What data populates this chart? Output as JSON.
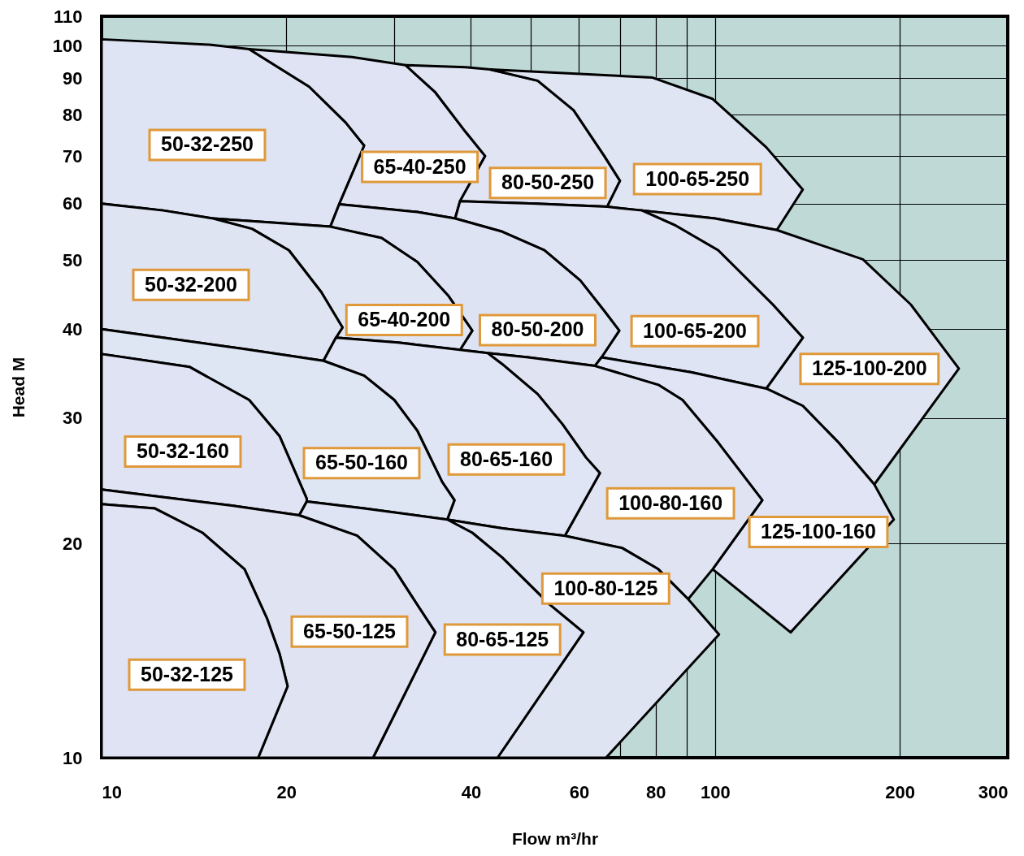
{
  "chart_data": {
    "type": "area",
    "xlabel": "Flow m³/hr",
    "ylabel": "Head M",
    "log": "xy",
    "grid": true,
    "xlim": [
      10,
      300
    ],
    "ylim": [
      10,
      110
    ],
    "xticks": [
      10,
      20,
      {
        "value": 30,
        "label": null
      },
      40,
      {
        "value": 50,
        "label": null
      },
      60,
      {
        "value": 70,
        "label": null
      },
      80,
      {
        "value": 90,
        "label": null
      },
      100,
      200,
      300
    ],
    "yticks": [
      10,
      20,
      30,
      40,
      50,
      60,
      70,
      80,
      90,
      100,
      110
    ],
    "series": [
      {
        "name": "50-32-250",
        "color": "#dee4f3",
        "x": [
          10,
          12.6,
          15.1,
          17.4,
          21.8,
          25.0,
          26.8,
          24.4,
          23.6,
          15.2,
          12.6,
          10
        ],
        "values": [
          102.1,
          101.1,
          100.3,
          98.9,
          87.6,
          78.0,
          72.4,
          59.9,
          55.7,
          57.2,
          58.7,
          60.0
        ]
      },
      {
        "name": "65-40-250",
        "color": "#dfe3f3",
        "x": [
          17.4,
          25.6,
          31.3,
          35.0,
          39.2,
          42.2,
          38.4,
          37.7,
          32.7,
          24.4,
          26.8,
          25.0,
          21.8
        ],
        "values": [
          98.9,
          96.4,
          93.9,
          86.0,
          75.7,
          70.0,
          60.5,
          57.2,
          58.4,
          59.9,
          72.4,
          78.0,
          87.6
        ]
      },
      {
        "name": "80-50-250",
        "color": "#e0e4f3",
        "x": [
          31.3,
          39.2,
          43.0,
          51.4,
          58.8,
          66.0,
          70.0,
          66.7,
          51.1,
          38.4,
          42.2,
          39.2,
          35.0
        ],
        "values": [
          93.9,
          93.3,
          92.6,
          89.3,
          81.2,
          70.0,
          64.6,
          59.4,
          60.0,
          60.5,
          70.0,
          75.7,
          86.0
        ]
      },
      {
        "name": "100-65-250",
        "color": "#dfe5f3",
        "x": [
          43.0,
          79.1,
          99.1,
          121.2,
          139.0,
          126.1,
          100,
          76.0,
          66.7,
          70.0,
          66.0,
          58.8,
          51.4
        ],
        "values": [
          92.6,
          90.2,
          84.2,
          72.0,
          62.8,
          55.1,
          57.2,
          58.7,
          59.4,
          64.6,
          70.0,
          81.2,
          89.3
        ]
      },
      {
        "name": "125-100-200",
        "color": "#dfe4f2",
        "x": [
          76.0,
          100,
          126.1,
          174.2,
          208.5,
          249.7,
          181.8,
          159.0,
          139.0,
          121.2,
          139.0,
          124.2,
          101.2,
          85.9
        ],
        "values": [
          58.7,
          57.2,
          55.1,
          50.1,
          43.3,
          35.2,
          24.2,
          27.7,
          31.2,
          33.0,
          38.9,
          43.3,
          51.6,
          56.0
        ]
      },
      {
        "name": "100-65-200",
        "color": "#dfe4f4",
        "x": [
          38.4,
          51.1,
          66.7,
          76.0,
          85.9,
          101.2,
          124.2,
          139.0,
          121.2,
          91.3,
          65.3,
          69.8,
          66.0,
          60.3,
          52.7,
          45.0,
          37.7
        ],
        "values": [
          60.5,
          60.0,
          59.4,
          58.7,
          56.0,
          51.6,
          43.3,
          38.9,
          33.0,
          34.8,
          36.5,
          39.8,
          42.4,
          46.8,
          51.6,
          54.8,
          57.2
        ]
      },
      {
        "name": "80-50-200",
        "color": "#dee3f3",
        "x": [
          24.4,
          32.7,
          37.7,
          45.0,
          52.7,
          60.3,
          66.0,
          69.8,
          65.3,
          63.7,
          49.6,
          42.6,
          38.4,
          40.2,
          36.7,
          32.7,
          28.6,
          23.6
        ],
        "values": [
          59.9,
          58.4,
          57.2,
          54.8,
          51.6,
          46.8,
          42.4,
          39.8,
          36.5,
          35.5,
          36.5,
          37.0,
          37.4,
          39.8,
          44.6,
          49.7,
          53.7,
          55.7
        ]
      },
      {
        "name": "65-40-200",
        "color": "#e0e5f3",
        "x": [
          15.2,
          23.6,
          28.6,
          32.7,
          36.7,
          40.2,
          38.4,
          30.4,
          24.1,
          24.7,
          22.8,
          20.2,
          17.6
        ],
        "values": [
          57.2,
          55.7,
          53.7,
          49.7,
          44.6,
          39.8,
          37.4,
          38.3,
          38.9,
          40.2,
          45.1,
          51.6,
          55.3
        ]
      },
      {
        "name": "50-32-200",
        "color": "#dee4f2",
        "x": [
          10,
          12.6,
          15.2,
          17.6,
          20.2,
          22.8,
          24.7,
          24.1,
          23.0,
          17.1,
          12.6,
          10
        ],
        "values": [
          60.0,
          58.7,
          57.2,
          55.3,
          51.6,
          45.1,
          40.2,
          38.9,
          36.1,
          37.5,
          38.9,
          40.0
        ]
      },
      {
        "name": "125-100-160",
        "color": "#e0e4f4",
        "x": [
          65.3,
          91.3,
          121.2,
          139.0,
          159.0,
          181.8,
          195.6,
          132.8,
          99.1,
          119.4,
          101.2,
          88.5,
          80.8,
          63.7
        ],
        "values": [
          36.5,
          34.8,
          33.0,
          31.2,
          27.7,
          24.2,
          21.6,
          15.0,
          18.4,
          23.0,
          27.7,
          31.8,
          33.4,
          35.5
        ]
      },
      {
        "name": "100-80-160",
        "color": "#dfe3f2",
        "x": [
          63.7,
          80.8,
          88.5,
          101.2,
          119.4,
          99.1,
          90.4,
          80.8,
          70.6,
          56.9,
          64.9,
          61.6,
          56.4,
          51.4,
          45.0,
          42.6,
          49.6
        ],
        "values": [
          35.5,
          33.4,
          31.8,
          27.7,
          23.0,
          18.4,
          16.7,
          18.4,
          19.7,
          20.5,
          25.1,
          26.4,
          29.4,
          32.4,
          35.7,
          37.0,
          36.5
        ]
      },
      {
        "name": "80-65-160",
        "color": "#dfe5f4",
        "x": [
          24.1,
          30.4,
          38.4,
          42.6,
          45.0,
          51.4,
          56.4,
          61.6,
          64.9,
          56.9,
          45.0,
          36.6,
          37.6,
          35.9,
          32.7,
          30.0,
          26.8,
          23.0
        ],
        "values": [
          38.9,
          38.3,
          37.4,
          37.0,
          35.7,
          32.4,
          29.4,
          26.4,
          25.1,
          20.5,
          21.0,
          21.6,
          23.0,
          24.4,
          28.8,
          31.8,
          34.4,
          36.1
        ]
      },
      {
        "name": "65-50-160",
        "color": "#dee5f3",
        "x": [
          10,
          12.6,
          17.1,
          23.0,
          26.8,
          30.0,
          32.7,
          35.9,
          37.6,
          36.6,
          26.8,
          21.6,
          21.6,
          19.5,
          17.4,
          13.9,
          10
        ],
        "values": [
          40.0,
          38.9,
          37.5,
          36.1,
          34.4,
          31.8,
          28.8,
          24.4,
          23.0,
          21.6,
          22.4,
          22.9,
          23.1,
          28.3,
          31.8,
          35.4,
          36.9
        ]
      },
      {
        "name": "50-32-160",
        "color": "#e0e3f3",
        "x": [
          10,
          13.9,
          17.4,
          19.5,
          21.6,
          21.6,
          21.0,
          16.3,
          10
        ],
        "values": [
          36.9,
          35.4,
          31.8,
          28.3,
          23.1,
          22.9,
          21.9,
          22.6,
          23.8
        ]
      },
      {
        "name": "100-80-125",
        "color": "#dfe4f3",
        "x": [
          36.6,
          45.0,
          56.9,
          70.6,
          80.8,
          90.4,
          101.5,
          66.4,
          44.2,
          61.0,
          53.8,
          45.0,
          40.2
        ],
        "values": [
          21.6,
          21.0,
          20.5,
          19.7,
          18.4,
          16.7,
          14.9,
          10,
          10,
          15.0,
          16.4,
          19.1,
          20.7
        ]
      },
      {
        "name": "80-65-125",
        "color": "#dee4f4",
        "x": [
          21.6,
          26.8,
          36.6,
          40.2,
          45.0,
          53.8,
          61.0,
          44.2,
          27.7,
          35.0,
          32.7,
          30.0,
          26.1,
          21.0
        ],
        "values": [
          22.9,
          22.4,
          21.6,
          20.7,
          19.1,
          16.4,
          15.0,
          10,
          10,
          15.0,
          16.4,
          18.4,
          20.5,
          21.9
        ]
      },
      {
        "name": "65-50-125",
        "color": "#e0e4f2",
        "x": [
          10,
          16.3,
          21.0,
          26.1,
          30.0,
          32.7,
          35.0,
          27.7,
          18.0,
          20.1,
          19.5,
          18.6,
          17.1,
          14.6,
          12.2,
          10
        ],
        "values": [
          23.8,
          22.6,
          21.9,
          20.5,
          18.4,
          16.4,
          15.0,
          10,
          10,
          12.6,
          14.0,
          15.7,
          18.4,
          20.7,
          22.4,
          22.7
        ]
      },
      {
        "name": "50-32-125",
        "color": "#dfe3f4",
        "x": [
          10,
          12.2,
          14.6,
          17.1,
          18.6,
          19.5,
          20.1,
          18.0,
          10
        ],
        "values": [
          22.7,
          22.4,
          20.7,
          18.4,
          15.7,
          14.0,
          12.6,
          10,
          10
        ]
      }
    ]
  }
}
